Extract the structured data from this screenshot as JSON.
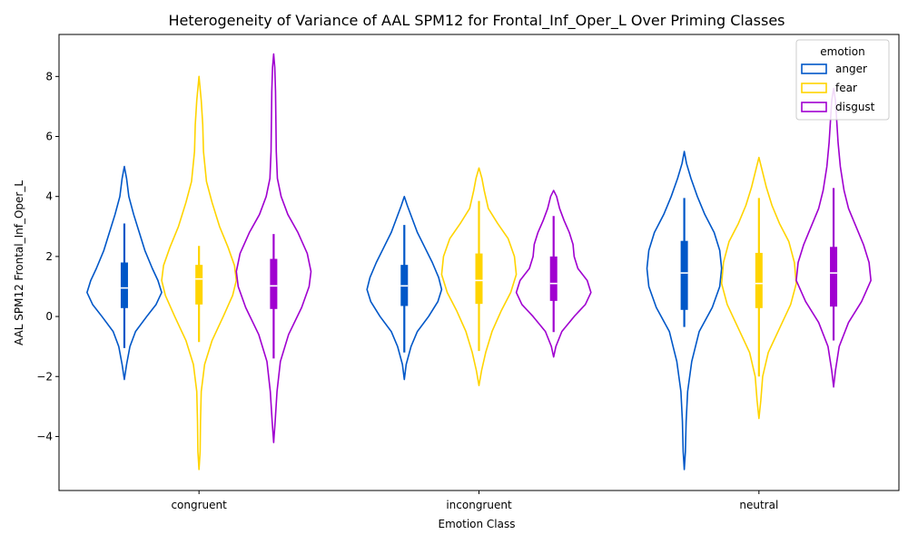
{
  "chart_data": {
    "type": "violin",
    "title": "Heterogeneity of Variance of AAL SPM12 for Frontal_Inf_Oper_L Over Priming Classes",
    "xlabel": "Emotion Class",
    "ylabel": "AAL SPM12 Frontal_Inf_Oper_L",
    "categories": [
      "congruent",
      "incongruent",
      "neutral"
    ],
    "ylim": [
      -5.8,
      9.4
    ],
    "yticks": [
      -4,
      -2,
      0,
      2,
      4,
      6,
      8
    ],
    "legend": {
      "title": "emotion",
      "placement": "upper right"
    },
    "series": [
      {
        "name": "anger",
        "color": "#0057c8",
        "violins": [
          {
            "profile": [
              [
                -2.1,
                0
              ],
              [
                -1.6,
                0.06
              ],
              [
                -1,
                0.15
              ],
              [
                -0.5,
                0.3
              ],
              [
                0,
                0.6
              ],
              [
                0.4,
                0.85
              ],
              [
                0.8,
                1.0
              ],
              [
                1.2,
                0.9
              ],
              [
                1.6,
                0.75
              ],
              [
                2.2,
                0.55
              ],
              [
                2.8,
                0.4
              ],
              [
                3.4,
                0.25
              ],
              [
                4.0,
                0.12
              ],
              [
                4.6,
                0.06
              ],
              [
                5.0,
                0
              ]
            ],
            "whisker": [
              -1.05,
              3.1
            ],
            "q1": 0.28,
            "q3": 1.8,
            "median": 0.95
          },
          {
            "profile": [
              [
                -2.1,
                0
              ],
              [
                -1.6,
                0.05
              ],
              [
                -1,
                0.18
              ],
              [
                -0.5,
                0.35
              ],
              [
                0,
                0.65
              ],
              [
                0.5,
                0.9
              ],
              [
                0.9,
                1.0
              ],
              [
                1.3,
                0.92
              ],
              [
                1.8,
                0.75
              ],
              [
                2.3,
                0.55
              ],
              [
                2.8,
                0.35
              ],
              [
                3.3,
                0.2
              ],
              [
                3.7,
                0.08
              ],
              [
                4.0,
                0
              ]
            ],
            "whisker": [
              -1.2,
              3.05
            ],
            "q1": 0.35,
            "q3": 1.72,
            "median": 1.02
          },
          {
            "profile": [
              [
                -5.1,
                0
              ],
              [
                -4.5,
                0.03
              ],
              [
                -3.5,
                0.05
              ],
              [
                -2.5,
                0.09
              ],
              [
                -1.5,
                0.2
              ],
              [
                -0.5,
                0.4
              ],
              [
                0.3,
                0.75
              ],
              [
                1.0,
                0.95
              ],
              [
                1.6,
                1.0
              ],
              [
                2.2,
                0.95
              ],
              [
                2.8,
                0.8
              ],
              [
                3.4,
                0.55
              ],
              [
                4.0,
                0.35
              ],
              [
                4.6,
                0.18
              ],
              [
                5.1,
                0.06
              ],
              [
                5.5,
                0
              ]
            ],
            "whisker": [
              -0.35,
              3.95
            ],
            "q1": 0.22,
            "q3": 2.52,
            "median": 1.45
          }
        ]
      },
      {
        "name": "fear",
        "color": "#ffd400",
        "violins": [
          {
            "profile": [
              [
                -5.1,
                0
              ],
              [
                -4.5,
                0.03
              ],
              [
                -3.5,
                0.04
              ],
              [
                -2.5,
                0.06
              ],
              [
                -1.6,
                0.15
              ],
              [
                -0.8,
                0.35
              ],
              [
                0,
                0.65
              ],
              [
                0.7,
                0.9
              ],
              [
                1.2,
                1.0
              ],
              [
                1.7,
                0.95
              ],
              [
                2.3,
                0.78
              ],
              [
                3.0,
                0.55
              ],
              [
                3.8,
                0.35
              ],
              [
                4.5,
                0.2
              ],
              [
                5.5,
                0.12
              ],
              [
                6.4,
                0.1
              ],
              [
                7.2,
                0.06
              ],
              [
                8.0,
                0
              ]
            ],
            "whisker": [
              -0.85,
              2.35
            ],
            "q1": 0.4,
            "q3": 1.72,
            "median": 1.25
          },
          {
            "profile": [
              [
                -2.3,
                0
              ],
              [
                -1.8,
                0.07
              ],
              [
                -1.2,
                0.18
              ],
              [
                -0.5,
                0.35
              ],
              [
                0.2,
                0.6
              ],
              [
                0.8,
                0.85
              ],
              [
                1.4,
                1.0
              ],
              [
                2.0,
                0.95
              ],
              [
                2.6,
                0.78
              ],
              [
                3.1,
                0.5
              ],
              [
                3.6,
                0.25
              ],
              [
                4.2,
                0.14
              ],
              [
                4.6,
                0.08
              ],
              [
                4.95,
                0
              ]
            ],
            "whisker": [
              -1.15,
              3.85
            ],
            "q1": 0.42,
            "q3": 2.1,
            "median": 1.2
          },
          {
            "profile": [
              [
                -3.4,
                0
              ],
              [
                -2.8,
                0.05
              ],
              [
                -2.0,
                0.1
              ],
              [
                -1.2,
                0.25
              ],
              [
                -0.4,
                0.55
              ],
              [
                0.4,
                0.85
              ],
              [
                1.1,
                1.0
              ],
              [
                1.8,
                0.95
              ],
              [
                2.5,
                0.8
              ],
              [
                3.1,
                0.55
              ],
              [
                3.7,
                0.35
              ],
              [
                4.3,
                0.2
              ],
              [
                4.8,
                0.1
              ],
              [
                5.3,
                0
              ]
            ],
            "whisker": [
              -2.0,
              3.95
            ],
            "q1": 0.28,
            "q3": 2.12,
            "median": 1.1
          }
        ]
      },
      {
        "name": "disgust",
        "color": "#a000d0",
        "violins": [
          {
            "profile": [
              [
                -4.2,
                0
              ],
              [
                -3.5,
                0.04
              ],
              [
                -2.5,
                0.09
              ],
              [
                -1.5,
                0.18
              ],
              [
                -0.6,
                0.4
              ],
              [
                0.3,
                0.75
              ],
              [
                1.0,
                0.95
              ],
              [
                1.5,
                1.0
              ],
              [
                2.1,
                0.9
              ],
              [
                2.8,
                0.65
              ],
              [
                3.4,
                0.38
              ],
              [
                4.0,
                0.2
              ],
              [
                4.6,
                0.1
              ],
              [
                5.5,
                0.07
              ],
              [
                6.5,
                0.06
              ],
              [
                7.5,
                0.05
              ],
              [
                8.3,
                0.03
              ],
              [
                8.75,
                0
              ]
            ],
            "whisker": [
              -1.4,
              2.75
            ],
            "q1": 0.25,
            "q3": 1.92,
            "median": 1.02
          },
          {
            "profile": [
              [
                -1.35,
                0
              ],
              [
                -1.0,
                0.06
              ],
              [
                -0.5,
                0.22
              ],
              [
                0,
                0.55
              ],
              [
                0.4,
                0.85
              ],
              [
                0.8,
                1.0
              ],
              [
                1.2,
                0.9
              ],
              [
                1.6,
                0.65
              ],
              [
                2.0,
                0.55
              ],
              [
                2.4,
                0.52
              ],
              [
                2.8,
                0.42
              ],
              [
                3.2,
                0.28
              ],
              [
                3.6,
                0.16
              ],
              [
                4.0,
                0.08
              ],
              [
                4.2,
                0
              ]
            ],
            "whisker": [
              -0.52,
              3.35
            ],
            "q1": 0.52,
            "q3": 2.0,
            "median": 1.1
          },
          {
            "profile": [
              [
                -2.35,
                0
              ],
              [
                -1.8,
                0.05
              ],
              [
                -1.0,
                0.15
              ],
              [
                -0.2,
                0.4
              ],
              [
                0.5,
                0.75
              ],
              [
                1.2,
                1.0
              ],
              [
                1.8,
                0.95
              ],
              [
                2.4,
                0.8
              ],
              [
                3.0,
                0.6
              ],
              [
                3.6,
                0.4
              ],
              [
                4.2,
                0.28
              ],
              [
                5.0,
                0.18
              ],
              [
                5.8,
                0.12
              ],
              [
                6.6,
                0.08
              ],
              [
                7.2,
                0.05
              ],
              [
                7.6,
                0
              ]
            ],
            "whisker": [
              -0.8,
              4.28
            ],
            "q1": 0.33,
            "q3": 2.32,
            "median": 1.45
          }
        ]
      }
    ]
  }
}
